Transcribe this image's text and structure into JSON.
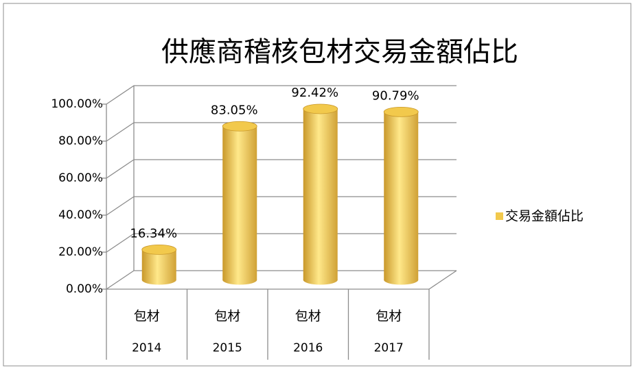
{
  "chart_data": {
    "type": "bar",
    "title": "供應商稽核包材交易金額佔比",
    "categories": [
      "包材",
      "包材",
      "包材",
      "包材"
    ],
    "category_groups": [
      "2014",
      "2015",
      "2016",
      "2017"
    ],
    "series": [
      {
        "name": "交易金額佔比",
        "color": "#f2c94c",
        "values": [
          16.34,
          83.05,
          92.42,
          90.79
        ],
        "value_labels": [
          "16.34%",
          "83.05%",
          "92.42%",
          "90.79%"
        ]
      }
    ],
    "ylim": [
      0,
      100
    ],
    "yticks": [
      {
        "value": 0,
        "label": "0.00%"
      },
      {
        "value": 20,
        "label": "20.00%"
      },
      {
        "value": 40,
        "label": "40.00%"
      },
      {
        "value": 60,
        "label": "60.00%"
      },
      {
        "value": 80,
        "label": "80.00%"
      },
      {
        "value": 100,
        "label": "100.00%"
      }
    ],
    "grid": true,
    "legend": "right"
  }
}
